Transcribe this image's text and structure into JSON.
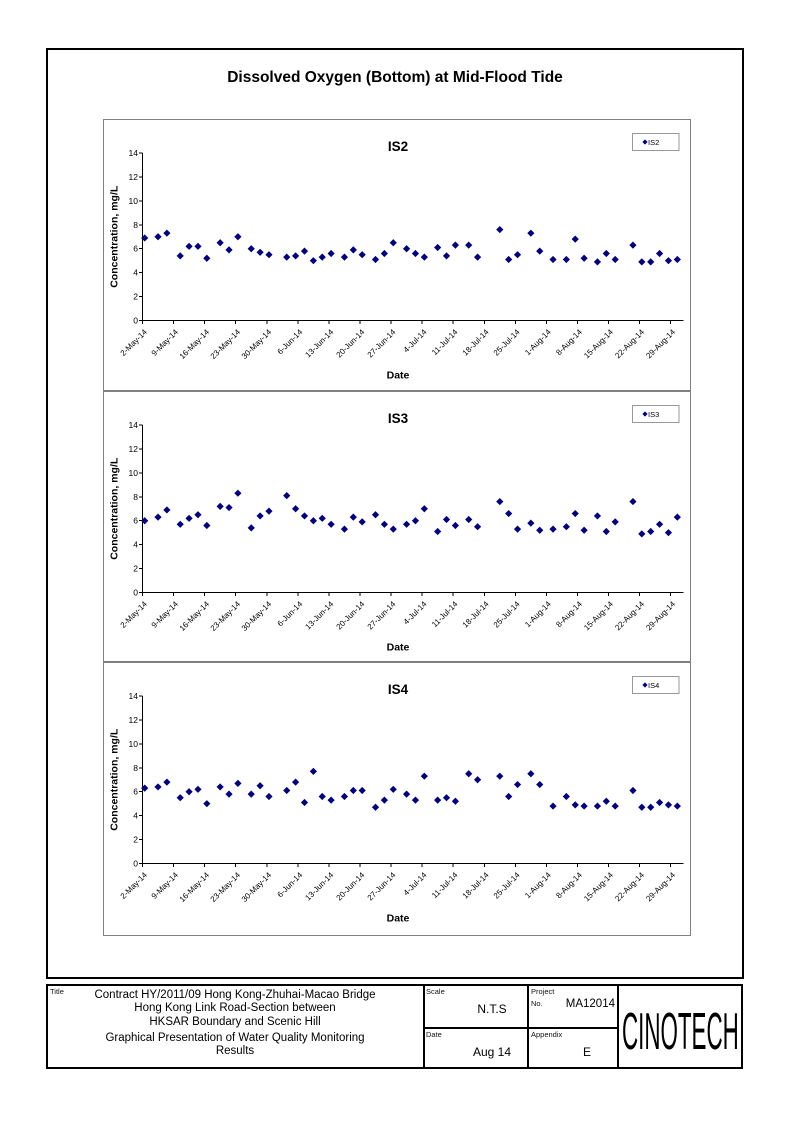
{
  "page_title": "Dissolved Oxygen (Bottom) at Mid-Flood Tide",
  "chart_data": [
    {
      "type": "scatter",
      "title": "IS2",
      "legend": "IS2",
      "xlabel": "Date",
      "ylabel": "Concentration, mg/L",
      "ylim": [
        0,
        14
      ],
      "ytick_step": 2,
      "marker_color": "#000080",
      "x_ticks": [
        "2-May-14",
        "9-May-14",
        "16-May-14",
        "23-May-14",
        "30-May-14",
        "6-Jun-14",
        "13-Jun-14",
        "20-Jun-14",
        "27-Jun-14",
        "4-Jul-14",
        "11-Jul-14",
        "18-Jul-14",
        "25-Jul-14",
        "1-Aug-14",
        "8-Aug-14",
        "15-Aug-14",
        "22-Aug-14",
        "29-Aug-14"
      ],
      "x_days": [
        0,
        3,
        5,
        8,
        10,
        12,
        14,
        17,
        19,
        21,
        24,
        26,
        28,
        32,
        34,
        36,
        38,
        40,
        42,
        45,
        47,
        49,
        52,
        54,
        56,
        59,
        61,
        63,
        66,
        68,
        70,
        73,
        75,
        80,
        82,
        84,
        87,
        89,
        92,
        95,
        97,
        99,
        102,
        104,
        106,
        110,
        112,
        114,
        116,
        118,
        120
      ],
      "values": [
        6.9,
        7.0,
        7.3,
        5.4,
        6.2,
        6.2,
        5.2,
        6.5,
        5.9,
        7.0,
        6.0,
        5.7,
        5.5,
        5.3,
        5.4,
        5.8,
        5.0,
        5.3,
        5.6,
        5.3,
        5.9,
        5.5,
        5.1,
        5.6,
        6.5,
        6.0,
        5.6,
        5.3,
        6.1,
        5.4,
        6.3,
        6.3,
        5.3,
        7.6,
        5.1,
        5.5,
        7.3,
        5.8,
        5.1,
        5.1,
        6.8,
        5.2,
        4.9,
        5.6,
        5.1,
        6.3,
        4.9,
        4.9,
        5.6,
        5.0,
        5.1
      ]
    },
    {
      "type": "scatter",
      "title": "IS3",
      "legend": "IS3",
      "xlabel": "Date",
      "ylabel": "Concentration, mg/L",
      "ylim": [
        0,
        14
      ],
      "ytick_step": 2,
      "marker_color": "#000080",
      "x_ticks": [
        "2-May-14",
        "9-May-14",
        "16-May-14",
        "23-May-14",
        "30-May-14",
        "6-Jun-14",
        "13-Jun-14",
        "20-Jun-14",
        "27-Jun-14",
        "4-Jul-14",
        "11-Jul-14",
        "18-Jul-14",
        "25-Jul-14",
        "1-Aug-14",
        "8-Aug-14",
        "15-Aug-14",
        "22-Aug-14",
        "29-Aug-14"
      ],
      "x_days": [
        0,
        3,
        5,
        8,
        10,
        12,
        14,
        17,
        19,
        21,
        24,
        26,
        28,
        32,
        34,
        36,
        38,
        40,
        42,
        45,
        47,
        49,
        52,
        54,
        56,
        59,
        61,
        63,
        66,
        68,
        70,
        73,
        75,
        80,
        82,
        84,
        87,
        89,
        92,
        95,
        97,
        99,
        102,
        104,
        106,
        110,
        112,
        114,
        116,
        118,
        120
      ],
      "values": [
        6.0,
        6.3,
        6.9,
        5.7,
        6.2,
        6.5,
        5.6,
        7.2,
        7.1,
        8.3,
        5.4,
        6.4,
        6.8,
        8.1,
        7.0,
        6.4,
        6.0,
        6.2,
        5.7,
        5.3,
        6.3,
        5.9,
        6.5,
        5.7,
        5.3,
        5.7,
        6.0,
        7.0,
        5.1,
        6.1,
        5.6,
        6.1,
        5.5,
        7.6,
        6.6,
        5.3,
        5.8,
        5.2,
        5.3,
        5.5,
        6.6,
        5.2,
        6.4,
        5.1,
        5.9,
        7.6,
        4.9,
        5.1,
        5.7,
        5.0,
        6.3
      ]
    },
    {
      "type": "scatter",
      "title": "IS4",
      "legend": "IS4",
      "xlabel": "Date",
      "ylabel": "Concentration, mg/L",
      "ylim": [
        0,
        14
      ],
      "ytick_step": 2,
      "marker_color": "#000080",
      "x_ticks": [
        "2-May-14",
        "9-May-14",
        "16-May-14",
        "23-May-14",
        "30-May-14",
        "6-Jun-14",
        "13-Jun-14",
        "20-Jun-14",
        "27-Jun-14",
        "4-Jul-14",
        "11-Jul-14",
        "18-Jul-14",
        "25-Jul-14",
        "1-Aug-14",
        "8-Aug-14",
        "15-Aug-14",
        "22-Aug-14",
        "29-Aug-14"
      ],
      "x_days": [
        0,
        3,
        5,
        8,
        10,
        12,
        14,
        17,
        19,
        21,
        24,
        26,
        28,
        32,
        34,
        36,
        38,
        40,
        42,
        45,
        47,
        49,
        52,
        54,
        56,
        59,
        61,
        63,
        66,
        68,
        70,
        73,
        75,
        80,
        82,
        84,
        87,
        89,
        92,
        95,
        97,
        99,
        102,
        104,
        106,
        110,
        112,
        114,
        116,
        118,
        120
      ],
      "values": [
        6.3,
        6.4,
        6.8,
        5.5,
        6.0,
        6.2,
        5.0,
        6.4,
        5.8,
        6.7,
        5.8,
        6.5,
        5.6,
        6.1,
        6.8,
        5.1,
        7.7,
        5.6,
        5.3,
        5.6,
        6.1,
        6.1,
        4.7,
        5.3,
        6.2,
        5.8,
        5.3,
        7.3,
        5.3,
        5.5,
        5.2,
        7.5,
        7.0,
        7.3,
        5.6,
        6.6,
        7.5,
        6.6,
        4.8,
        5.6,
        4.9,
        4.8,
        4.8,
        5.2,
        4.8,
        6.1,
        4.7,
        4.7,
        5.1,
        4.9,
        4.8
      ]
    }
  ],
  "title_block": {
    "title_label": "Title",
    "title_lines": {
      "l1": "Contract HY/2011/09 Hong Kong-Zhuhai-Macao Bridge",
      "l2": "Hong Kong Link Road-Section between",
      "l3": "HKSAR Boundary and Scenic Hill"
    },
    "subtitle_lines": {
      "l1": "Graphical Presentation of Water Quality Monitoring",
      "l2": "Results"
    },
    "scale_label": "Scale",
    "scale_value": "N.T.S",
    "date_label": "Date",
    "date_value": "Aug 14",
    "project_label": "Project",
    "project_no_label": "No.",
    "project_value": "MA12014",
    "appendix_label": "Appendix",
    "appendix_value": "E",
    "logo_text": "CINOTECH"
  }
}
